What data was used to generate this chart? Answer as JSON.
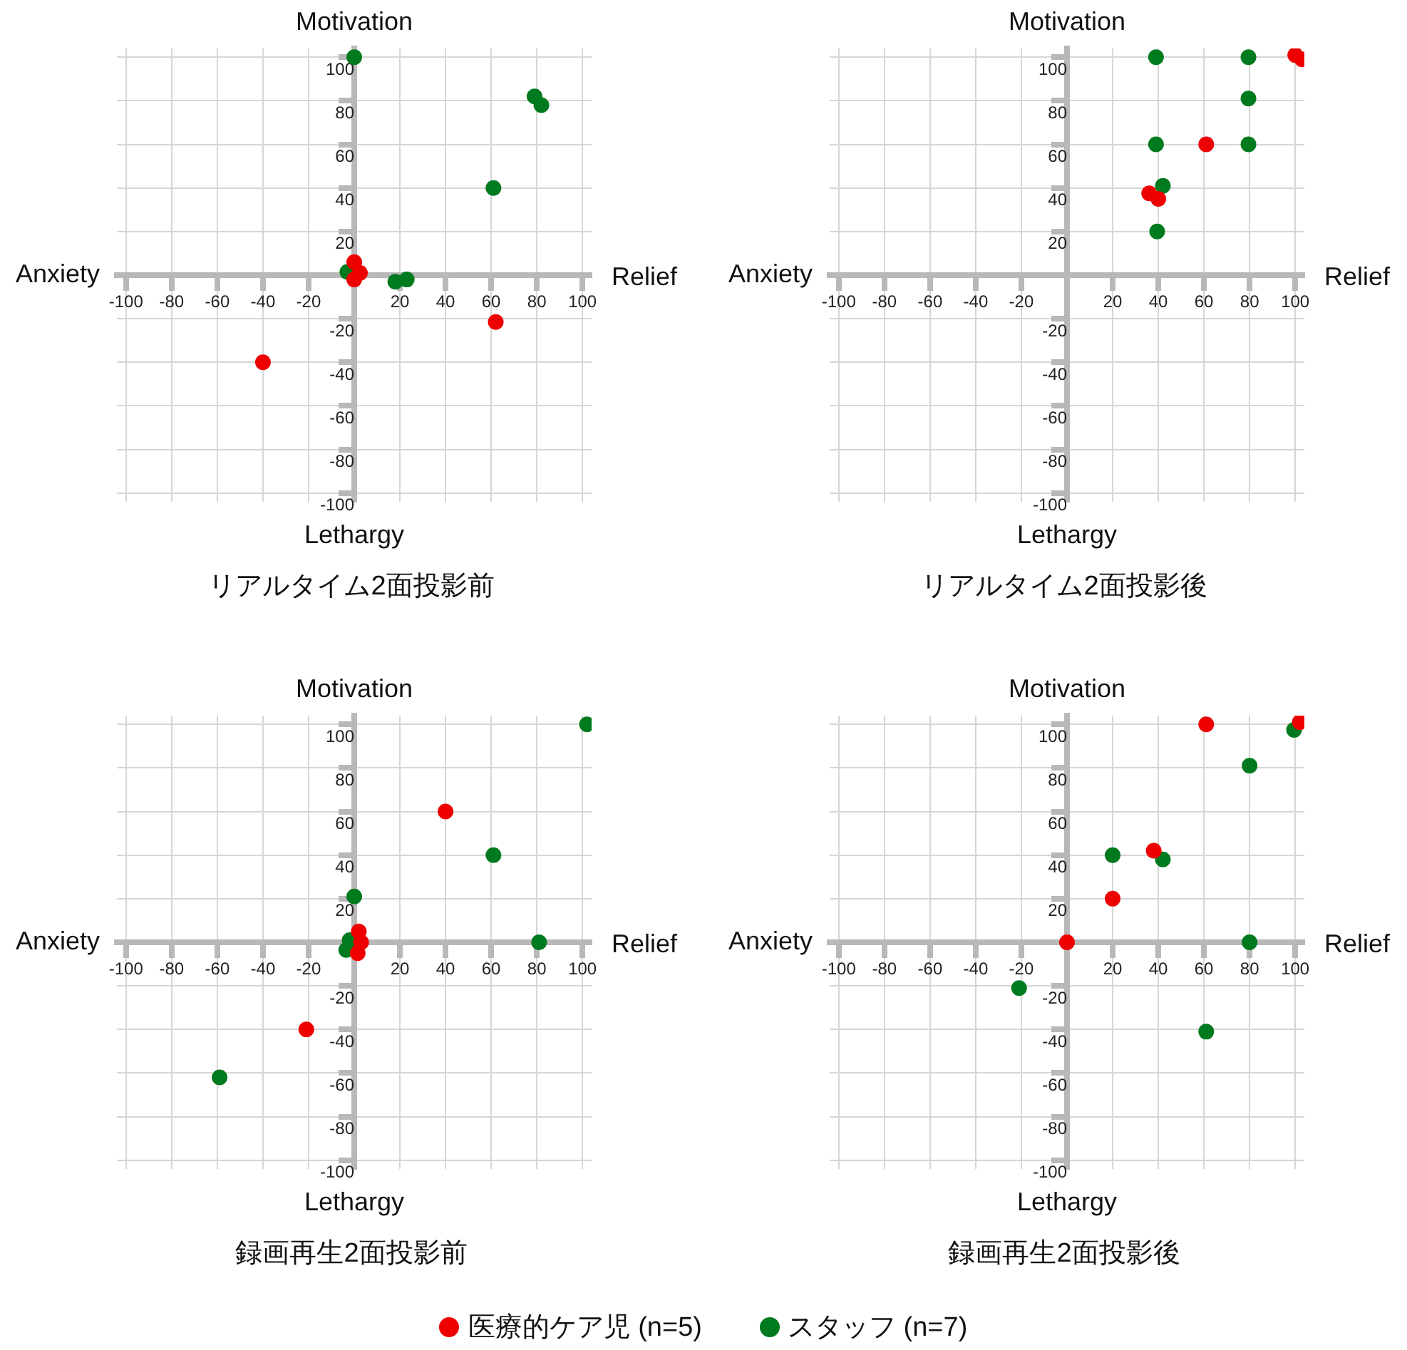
{
  "chart_data": [
    {
      "type": "scatter",
      "title": "リアルタイム2面投影前",
      "annotations": [
        "Anxiety",
        "Relief",
        "Motivation",
        "Lethargy"
      ],
      "xlim": [
        -104,
        104
      ],
      "ylim": [
        -104,
        104
      ],
      "xticks": [
        -100,
        -80,
        -60,
        -40,
        -20,
        20,
        40,
        60,
        80,
        100
      ],
      "yticks": [
        -100,
        -80,
        -60,
        -40,
        -20,
        20,
        40,
        60,
        80,
        100
      ],
      "grid": true,
      "legend": "bottom",
      "marker": "circle",
      "series": [
        {
          "name": "医療的ケア児 (n=5)",
          "color": "#ee0000",
          "x": [
            0,
            2.5,
            0,
            62,
            -40
          ],
          "values": [
            6,
            1,
            -2,
            -21.5,
            -40
          ]
        },
        {
          "name": "スタッフ (n=7)",
          "color": "#007a1e",
          "x": [
            0,
            79,
            82,
            61,
            -3,
            18,
            23
          ],
          "values": [
            100,
            82,
            78,
            40,
            1.5,
            -3,
            -2
          ]
        }
      ]
    },
    {
      "type": "scatter",
      "title": "リアルタイム2面投影後",
      "annotations": [
        "Anxiety",
        "Relief",
        "Motivation",
        "Lethargy"
      ],
      "xlim": [
        -104,
        104
      ],
      "ylim": [
        -104,
        104
      ],
      "xticks": [
        -100,
        -80,
        -60,
        -40,
        -20,
        20,
        40,
        60,
        80,
        100
      ],
      "yticks": [
        -100,
        -80,
        -60,
        -40,
        -20,
        20,
        40,
        60,
        80,
        100
      ],
      "grid": true,
      "legend": "bottom",
      "marker": "circle",
      "series": [
        {
          "name": "医療的ケア児 (n=5)",
          "color": "#ee0000",
          "x": [
            100,
            103,
            61,
            36,
            40
          ],
          "values": [
            101,
            99,
            60,
            37.5,
            35
          ]
        },
        {
          "name": "スタッフ (n=7)",
          "color": "#007a1e",
          "x": [
            39,
            79.5,
            79.5,
            39,
            79.5,
            42,
            39.5
          ],
          "values": [
            100,
            100,
            81,
            60,
            60,
            41,
            20
          ]
        }
      ]
    },
    {
      "type": "scatter",
      "title": "録画再生2面投影前",
      "annotations": [
        "Anxiety",
        "Relief",
        "Motivation",
        "Lethargy"
      ],
      "xlim": [
        -104,
        104
      ],
      "ylim": [
        -104,
        104
      ],
      "xticks": [
        -100,
        -80,
        -60,
        -40,
        -20,
        20,
        40,
        60,
        80,
        100
      ],
      "yticks": [
        -100,
        -80,
        -60,
        -40,
        -20,
        20,
        40,
        60,
        80,
        100
      ],
      "grid": true,
      "legend": "bottom",
      "marker": "circle",
      "series": [
        {
          "name": "医療的ケア児 (n=5)",
          "color": "#ee0000",
          "x": [
            40,
            2,
            3,
            1.5,
            -21
          ],
          "values": [
            60,
            5,
            0,
            -5,
            -40
          ]
        },
        {
          "name": "スタッフ (n=7)",
          "color": "#007a1e",
          "x": [
            102,
            61,
            0,
            -2,
            -3.5,
            81,
            -59
          ],
          "values": [
            100,
            40,
            21,
            1,
            -3.5,
            0,
            -62
          ]
        }
      ]
    },
    {
      "type": "scatter",
      "title": "録画再生2面投影後",
      "annotations": [
        "Anxiety",
        "Relief",
        "Motivation",
        "Lethargy"
      ],
      "xlim": [
        -104,
        104
      ],
      "ylim": [
        -104,
        104
      ],
      "xticks": [
        -100,
        -80,
        -60,
        -40,
        -20,
        20,
        40,
        60,
        80,
        100
      ],
      "yticks": [
        -100,
        -80,
        -60,
        -40,
        -20,
        20,
        40,
        60,
        80,
        100
      ],
      "grid": true,
      "legend": "bottom",
      "marker": "circle",
      "series": [
        {
          "name": "医療的ケア児 (n=5)",
          "color": "#ee0000",
          "x": [
            61,
            102,
            38,
            20,
            0
          ],
          "values": [
            100,
            101,
            42,
            20,
            0
          ]
        },
        {
          "name": "スタッフ (n=7)",
          "color": "#007a1e",
          "x": [
            99.5,
            80,
            20,
            42,
            80,
            -21,
            61
          ],
          "values": [
            97.5,
            81,
            40,
            38,
            0,
            -21,
            -41
          ]
        }
      ]
    }
  ]
}
